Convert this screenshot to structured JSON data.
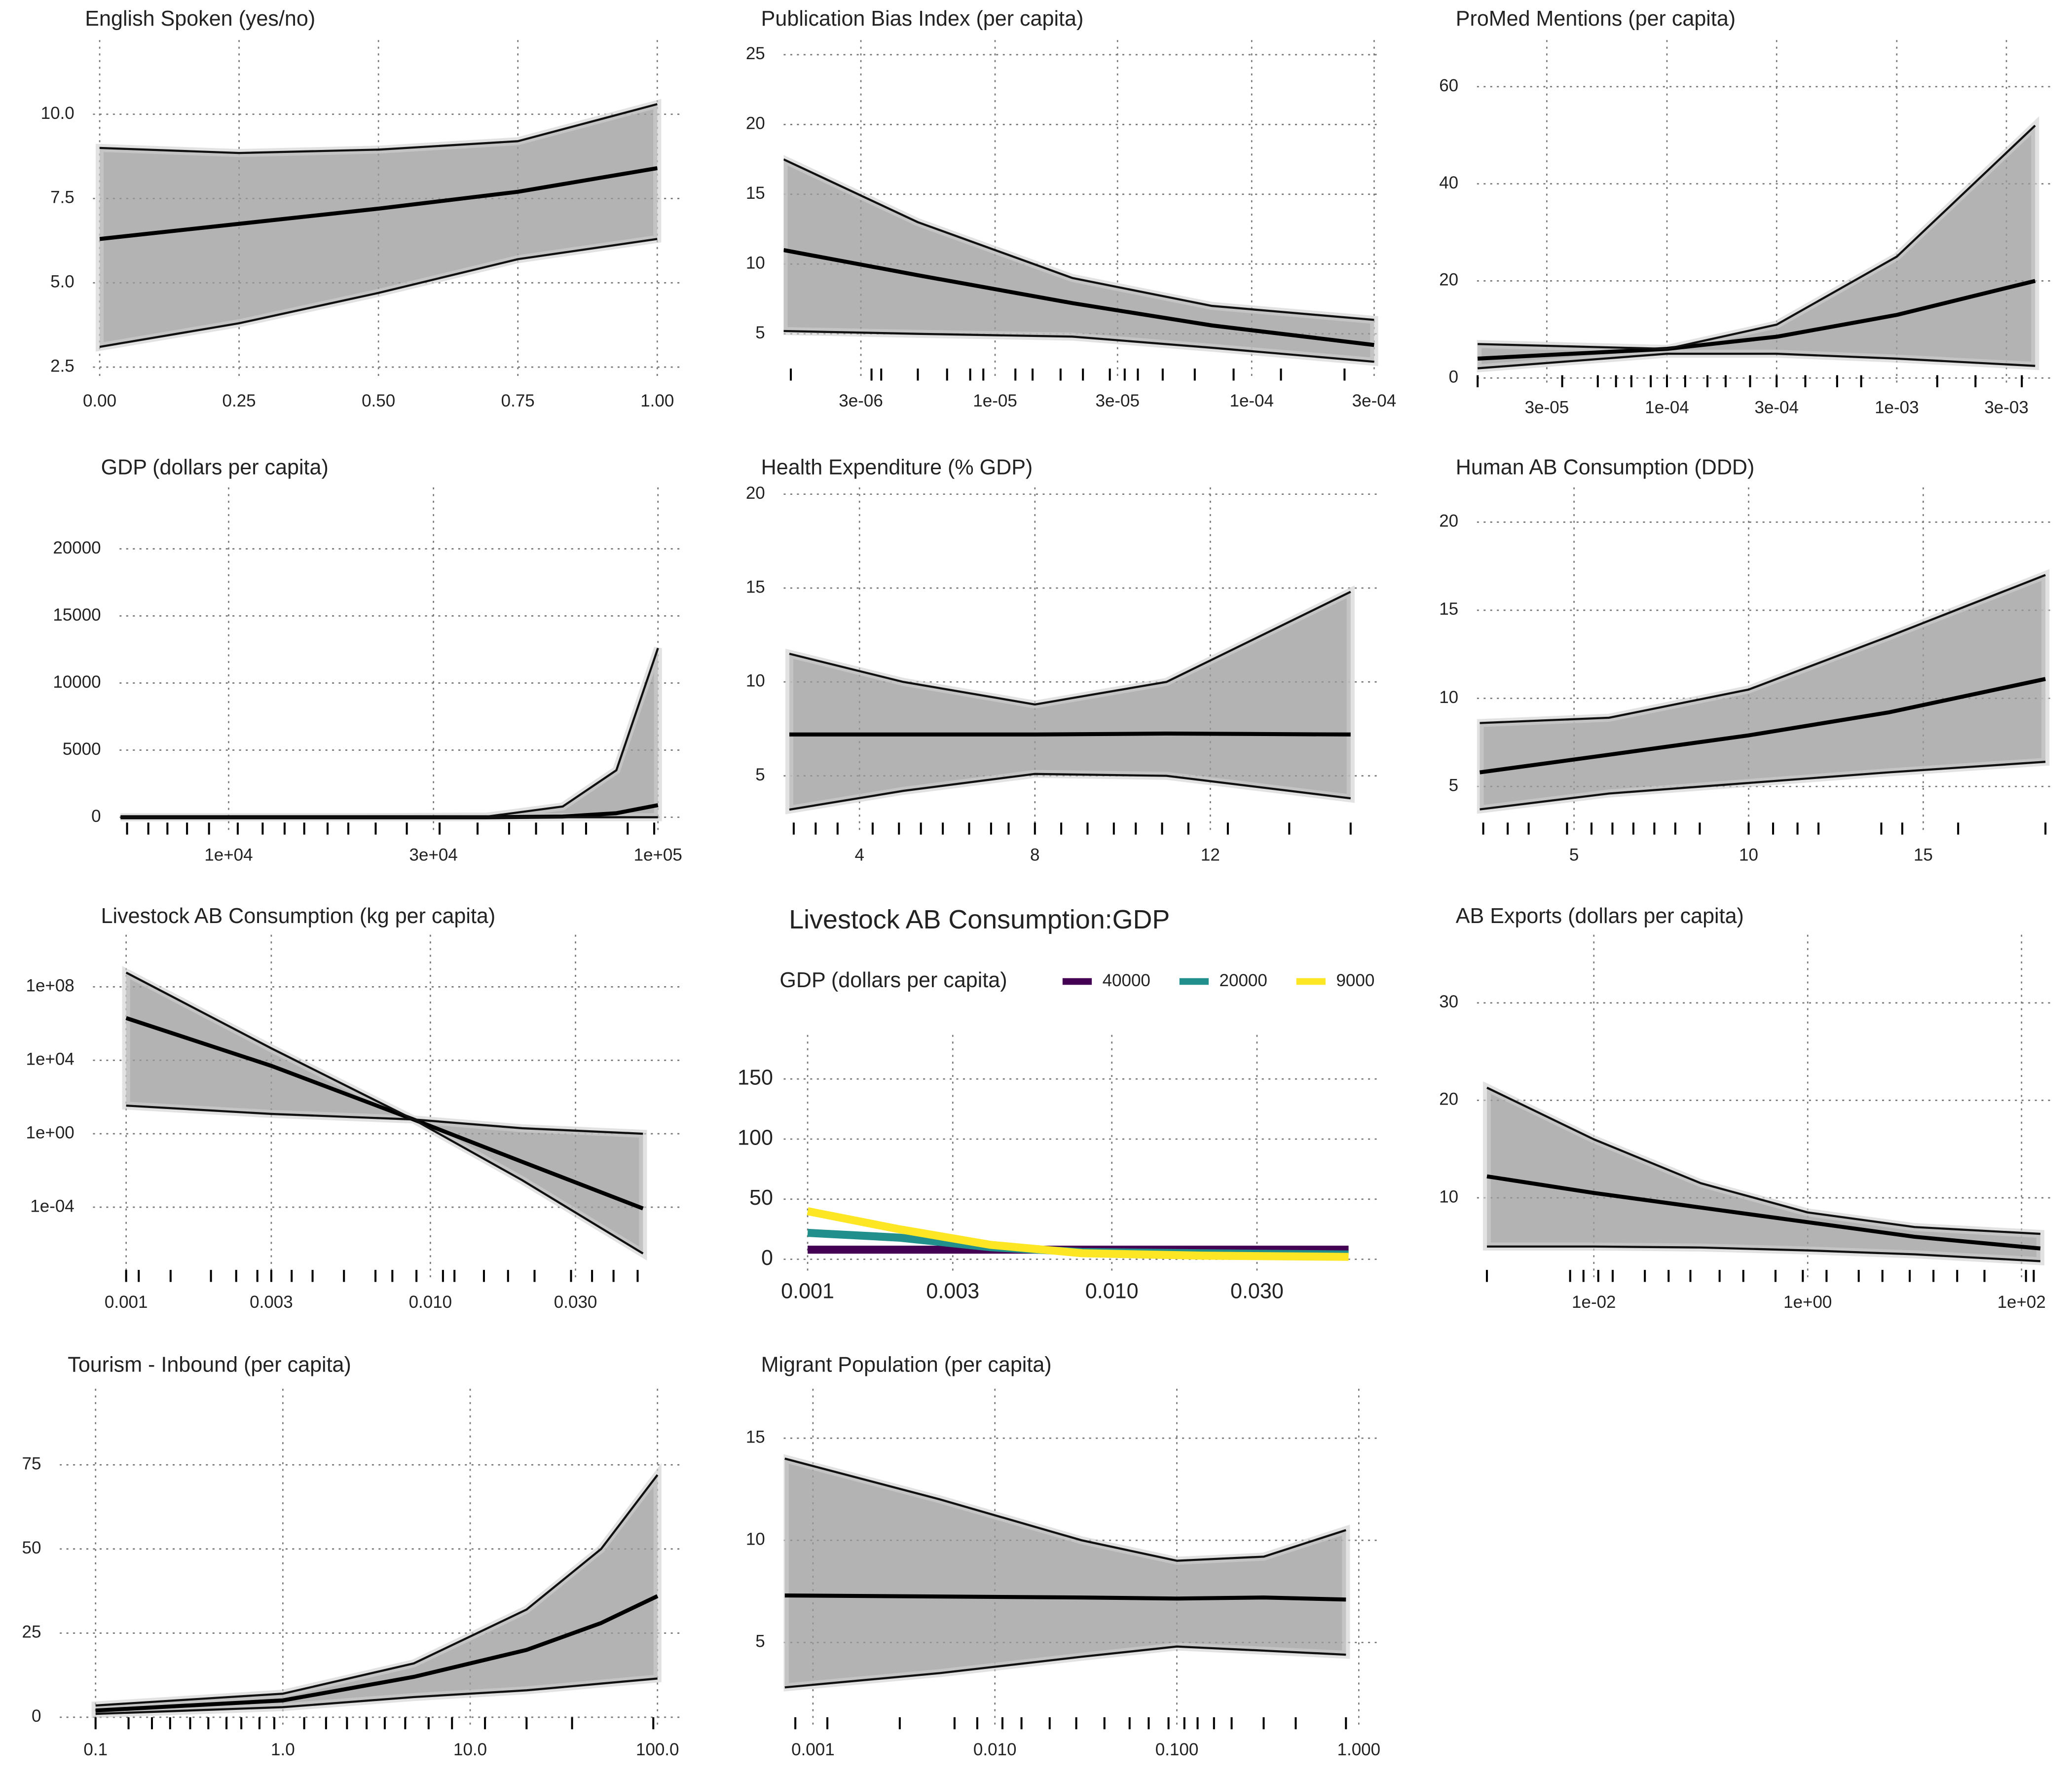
{
  "chart_data": [
    {
      "type": "line",
      "title": "English Spoken (yes/no)",
      "x": [
        0,
        0.25,
        0.5,
        0.75,
        1
      ],
      "series": [
        {
          "color": "#000000",
          "values": [
            6.3,
            6.75,
            7.2,
            7.7,
            8.4
          ]
        },
        {
          "color": "#111111",
          "values": [
            9.0,
            8.85,
            8.95,
            9.2,
            10.3
          ]
        },
        {
          "color": "#111111",
          "values": [
            3.1,
            3.8,
            4.7,
            5.7,
            6.3
          ]
        }
      ],
      "xlim": [
        -0.012,
        1.048
      ],
      "xticks": [
        {
          "value": 0,
          "label": "0.00"
        },
        {
          "value": 0.25,
          "label": "0.25"
        },
        {
          "value": 0.5,
          "label": "0.50"
        },
        {
          "value": 0.75,
          "label": "0.75"
        },
        {
          "value": 1,
          "label": "1.00"
        }
      ],
      "ylim": [
        2.1,
        12.2
      ],
      "yticks": [
        2.5,
        {
          "value": 5,
          "label": "5.0"
        },
        7.5,
        {
          "value": 10,
          "label": "10.0"
        }
      ],
      "grid": true,
      "xlog": false,
      "ylog": false,
      "rug": []
    },
    {
      "type": "line",
      "title": "Publication Bias Index (per capita)",
      "x": [
        1.5e-06,
        5e-06,
        2e-05,
        7e-05,
        0.0003
      ],
      "series": [
        {
          "color": "#000000",
          "values": [
            11,
            9.2,
            7.2,
            5.6,
            4.2
          ]
        },
        {
          "color": "#111111",
          "values": [
            17.5,
            13,
            9,
            7,
            6
          ]
        },
        {
          "color": "#111111",
          "values": [
            5.2,
            5.0,
            4.8,
            4.0,
            3.0
          ]
        }
      ],
      "xlim": [
        1.5e-06,
        0.00032
      ],
      "xticks": [
        {
          "value": 3e-06,
          "label": "3e-06"
        },
        {
          "value": 1e-05,
          "label": "1e-05"
        },
        {
          "value": 3e-05,
          "label": "3e-05"
        },
        {
          "value": 0.0001,
          "label": "1e-04"
        },
        {
          "value": 0.0003,
          "label": "3e-04"
        }
      ],
      "ylim": [
        1.65,
        26.05
      ],
      "yticks": [
        5,
        10,
        15,
        20,
        25
      ],
      "grid": true,
      "xlog": true,
      "ylog": false,
      "rug": [
        1.6e-06,
        3.3e-06,
        3.6e-06,
        5e-06,
        6.5e-06,
        8e-06,
        9e-06,
        1.2e-05,
        1.4e-05,
        1.8e-05,
        2.2e-05,
        2.8e-05,
        3.2e-05,
        3.6e-05,
        4.5e-05,
        6e-05,
        8.5e-05,
        0.00013,
        0.00023
      ]
    },
    {
      "type": "line",
      "title": "ProMed Mentions (per capita)",
      "x": [
        1.5e-05,
        0.0001,
        0.0003,
        0.001,
        0.004
      ],
      "series": [
        {
          "color": "#000000",
          "values": [
            4,
            6,
            8.5,
            13,
            20
          ]
        },
        {
          "color": "#111111",
          "values": [
            7,
            6,
            11,
            25,
            52
          ]
        },
        {
          "color": "#111111",
          "values": [
            2,
            5,
            5,
            4,
            2.5
          ]
        }
      ],
      "xlim": [
        1.49e-05,
        0.00474
      ],
      "xticks": [
        {
          "value": 3e-05,
          "label": "3e-05"
        },
        {
          "value": 0.0001,
          "label": "1e-04"
        },
        {
          "value": 0.0003,
          "label": "3e-04"
        },
        {
          "value": 0.001,
          "label": "1e-03"
        },
        {
          "value": 0.003,
          "label": "3e-03"
        }
      ],
      "ylim": [
        -1.9,
        69.6
      ],
      "yticks": [
        0,
        20,
        40,
        60
      ],
      "grid": true,
      "xlog": true,
      "ylog": false,
      "rug": [
        1.5e-05,
        3.5e-05,
        5e-05,
        6e-05,
        7e-05,
        8.5e-05,
        0.0001,
        0.00012,
        0.00015,
        0.00018,
        0.00023,
        0.0003,
        0.0004,
        0.00055,
        0.0007,
        0.0015,
        0.0022,
        0.0035
      ]
    },
    {
      "type": "line",
      "title": "GDP (dollars per capita)",
      "x": [
        5600,
        20000,
        40000,
        60000,
        80000,
        100000
      ],
      "series": [
        {
          "color": "#000000",
          "values": [
            0,
            0,
            0,
            50,
            300,
            900
          ]
        },
        {
          "color": "#111111",
          "values": [
            0,
            0,
            50,
            800,
            3500,
            12600
          ]
        },
        {
          "color": "#111111",
          "values": [
            0,
            0,
            0,
            0,
            0,
            0
          ]
        }
      ],
      "xlim": [
        5570,
        115000
      ],
      "xticks": [
        {
          "value": 10000,
          "label": "1e+04"
        },
        {
          "value": 30000,
          "label": "3e+04"
        },
        {
          "value": 100000,
          "label": "1e+05"
        }
      ],
      "ylim": [
        -1293,
        24577
      ],
      "yticks": [
        0,
        5000,
        10000,
        15000,
        20000
      ],
      "grid": true,
      "xlog": true,
      "ylog": false,
      "rug": [
        5800,
        6500,
        7200,
        8000,
        9000,
        10500,
        12000,
        13500,
        15000,
        17000,
        19000,
        22000,
        26000,
        31000,
        38000,
        45000,
        52000,
        60000,
        68000,
        85000,
        98000
      ]
    },
    {
      "type": "line",
      "title": "Health Expenditure (% GDP)",
      "x": [
        2.4,
        5,
        8,
        11,
        15.2
      ],
      "series": [
        {
          "color": "#000000",
          "values": [
            7.2,
            7.2,
            7.2,
            7.25,
            7.2
          ]
        },
        {
          "color": "#111111",
          "values": [
            11.5,
            10,
            8.8,
            10,
            14.8
          ]
        },
        {
          "color": "#111111",
          "values": [
            3.2,
            4.2,
            5.1,
            5.0,
            3.8
          ]
        }
      ],
      "xlim": [
        2.27,
        15.9
      ],
      "xticks": [
        4,
        8,
        12
      ],
      "ylim": [
        1.87,
        20.36
      ],
      "yticks": [
        5,
        10,
        15,
        20
      ],
      "grid": true,
      "xlog": false,
      "ylog": false,
      "rug": [
        2.5,
        3,
        3.5,
        4.3,
        4.9,
        5.4,
        5.9,
        6.5,
        7,
        7.4,
        8,
        8.6,
        9.2,
        9.8,
        10.3,
        10.9,
        11.5,
        12.4,
        13.8,
        15.2
      ]
    },
    {
      "type": "line",
      "title": "Human AB Consumption (DDD)",
      "x": [
        2.3,
        6,
        10,
        14,
        18.5
      ],
      "series": [
        {
          "color": "#000000",
          "values": [
            5.8,
            6.8,
            7.9,
            9.2,
            11.1
          ]
        },
        {
          "color": "#111111",
          "values": [
            8.6,
            8.9,
            10.5,
            13.5,
            17
          ]
        },
        {
          "color": "#111111",
          "values": [
            3.7,
            4.6,
            5.2,
            5.8,
            6.4
          ]
        }
      ],
      "xlim": [
        2.22,
        18.69
      ],
      "xticks": [
        5,
        10,
        15
      ],
      "ylim": [
        2.27,
        21.97
      ],
      "yticks": [
        5,
        10,
        15,
        20
      ],
      "grid": true,
      "xlog": false,
      "ylog": false,
      "rug": [
        2.4,
        3.1,
        3.7,
        4.8,
        5.5,
        6.1,
        6.7,
        7.3,
        7.9,
        8.6,
        10,
        10.7,
        11.4,
        12,
        13.8,
        14.4,
        16,
        18.5
      ]
    },
    {
      "type": "line",
      "title": "Livestock AB Consumption (kg per capita)",
      "x": [
        0.001,
        0.003,
        0.0088,
        0.02,
        0.05
      ],
      "series": [
        {
          "color": "#000000",
          "values": [
            2000000.0,
            5000,
            6,
            0.03,
            8.5e-05
          ]
        },
        {
          "color": "#111111",
          "values": [
            600000000.0,
            45000,
            6,
            0.003,
            3e-07
          ]
        },
        {
          "color": "#111111",
          "values": [
            34,
            12,
            6,
            2,
            1
          ]
        }
      ],
      "xlim": [
        0.000778,
        0.0682
      ],
      "xticks": [
        0.001,
        0.003,
        {
          "value": 0.01,
          "label": "0.010"
        },
        {
          "value": 0.03,
          "label": "0.030"
        }
      ],
      "ylim": [
        8.5e-09,
        69000000000.0
      ],
      "yticks": [
        {
          "value": 100000000.0,
          "label": "1e+08"
        },
        {
          "value": 10000.0,
          "label": "1e+04"
        },
        {
          "value": 1,
          "label": "1e+00"
        },
        {
          "value": 0.0001,
          "label": "1e-04"
        }
      ],
      "grid": true,
      "xlog": true,
      "ylog": true,
      "rug": [
        0.001,
        0.0011,
        0.0014,
        0.0019,
        0.0023,
        0.0027,
        0.003,
        0.0035,
        0.0041,
        0.0052,
        0.0066,
        0.0075,
        0.009,
        0.011,
        0.012,
        0.015,
        0.018,
        0.022,
        0.029,
        0.034,
        0.04,
        0.048
      ]
    },
    {
      "type": "line",
      "title": "Livestock AB Consumption:GDP",
      "legend_title": "GDP (dollars per capita)",
      "x": [
        0.001,
        0.002,
        0.004,
        0.008,
        0.02,
        0.06
      ],
      "series": [
        {
          "name": "40000",
          "color": "#440154",
          "values": [
            8,
            8,
            8,
            8,
            8,
            8
          ]
        },
        {
          "name": "20000",
          "color": "#21908c",
          "values": [
            22,
            18,
            10,
            6,
            5,
            4
          ]
        },
        {
          "name": "9000",
          "color": "#fde725",
          "values": [
            40,
            25,
            12,
            5,
            3,
            2
          ]
        }
      ],
      "xlim": [
        0.000834,
        0.0769
      ],
      "xticks": [
        0.001,
        0.003,
        {
          "value": 0.01,
          "label": "0.010"
        },
        {
          "value": 0.03,
          "label": "0.030"
        }
      ],
      "ylim": [
        -13.3,
        186.7
      ],
      "yticks": [
        0,
        50,
        100,
        150
      ],
      "grid": true,
      "xlog": true,
      "ylog": false,
      "rug": []
    },
    {
      "type": "line",
      "title": "AB Exports (dollars per capita)",
      "x": [
        0.001,
        0.01,
        0.1,
        1,
        10,
        150
      ],
      "series": [
        {
          "color": "#000000",
          "values": [
            12.2,
            10.5,
            9,
            7.5,
            6,
            4.8
          ]
        },
        {
          "color": "#111111",
          "values": [
            21.3,
            16,
            11.5,
            8.5,
            7,
            6.3
          ]
        },
        {
          "color": "#111111",
          "values": [
            5,
            5,
            4.9,
            4.6,
            4.2,
            3.5
          ]
        }
      ],
      "xlim": [
        0.000807,
        193
      ],
      "xticks": [
        {
          "value": 0.01,
          "label": "1e-02"
        },
        {
          "value": 1,
          "label": "1e+00"
        },
        {
          "value": 100,
          "label": "1e+02"
        }
      ],
      "ylim": [
        1.37,
        36.99
      ],
      "yticks": [
        10,
        20,
        30
      ],
      "grid": true,
      "xlog": true,
      "ylog": false,
      "rug": [
        0.001,
        0.006,
        0.008,
        0.011,
        0.015,
        0.03,
        0.05,
        0.08,
        0.15,
        0.25,
        0.5,
        0.9,
        1.5,
        3,
        5,
        9,
        15,
        25,
        45,
        110,
        130
      ]
    },
    {
      "type": "line",
      "title": "Tourism - Inbound (per capita)",
      "x": [
        0.1,
        1,
        5,
        20,
        50,
        100
      ],
      "series": [
        {
          "color": "#000000",
          "values": [
            2,
            5,
            12,
            20,
            28,
            36
          ]
        },
        {
          "color": "#111111",
          "values": [
            3.5,
            7,
            16,
            32,
            50,
            72
          ]
        },
        {
          "color": "#111111",
          "values": [
            1,
            3,
            6,
            8,
            10,
            11.5
          ]
        }
      ],
      "xlim": [
        0.0644,
        138.6
      ],
      "xticks": [
        0.1,
        {
          "value": 1,
          "label": "1.0"
        },
        {
          "value": 10,
          "label": "10.0"
        },
        {
          "value": 100,
          "label": "100.0"
        }
      ],
      "ylim": [
        -3.57,
        97.6
      ],
      "yticks": [
        0,
        25,
        50,
        75
      ],
      "grid": true,
      "xlog": true,
      "ylog": false,
      "rug": [
        0.1,
        0.15,
        0.2,
        0.25,
        0.32,
        0.4,
        0.5,
        0.6,
        0.75,
        0.9,
        1.3,
        1.7,
        2.2,
        2.8,
        3.5,
        4.5,
        6,
        8,
        12,
        20,
        35,
        95
      ]
    },
    {
      "type": "line",
      "title": "Migrant Population (per capita)",
      "x": [
        0.0007,
        0.005,
        0.03,
        0.1,
        0.3,
        0.85
      ],
      "series": [
        {
          "color": "#000000",
          "values": [
            7.3,
            7.25,
            7.2,
            7.15,
            7.2,
            7.1
          ]
        },
        {
          "color": "#111111",
          "values": [
            14,
            12,
            10,
            9,
            9.2,
            10.5
          ]
        },
        {
          "color": "#111111",
          "values": [
            2.8,
            3.5,
            4.3,
            4.8,
            4.6,
            4.4
          ]
        }
      ],
      "xlim": [
        0.00069,
        1.33
      ],
      "xticks": [
        0.001,
        {
          "value": 0.01,
          "label": "0.010"
        },
        {
          "value": 0.1,
          "label": "0.100"
        },
        {
          "value": 1,
          "label": "1.000"
        }
      ],
      "ylim": [
        0.75,
        17.42
      ],
      "yticks": [
        5,
        10,
        15
      ],
      "grid": true,
      "xlog": true,
      "ylog": false,
      "rug": [
        0.0008,
        0.0012,
        0.003,
        0.006,
        0.008,
        0.011,
        0.014,
        0.02,
        0.028,
        0.04,
        0.055,
        0.07,
        0.09,
        0.11,
        0.13,
        0.16,
        0.2,
        0.3,
        0.45,
        0.85
      ]
    }
  ]
}
